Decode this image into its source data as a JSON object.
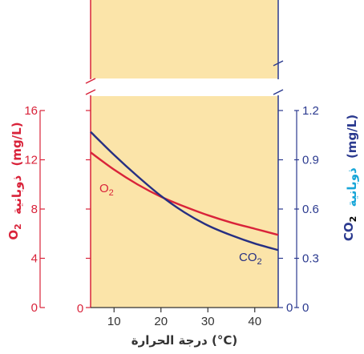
{
  "chart_data": {
    "type": "line",
    "x": [
      5,
      10,
      15,
      20,
      25,
      30,
      35,
      40,
      45
    ],
    "xlim": [
      5,
      45
    ],
    "xticks": [
      10,
      20,
      30,
      40
    ],
    "xlabel": "درجة الحرارة (°C)",
    "x_origin_label": "0",
    "y_left": {
      "label_formula": "O2",
      "label_word": "ذوبانية",
      "label_unit": "(mg/L)",
      "ylim": [
        0,
        16
      ],
      "ticks": [
        "0",
        "4",
        "8",
        "12",
        "16"
      ],
      "color": "#d9233a"
    },
    "y_right": {
      "label_formula": "CO2",
      "label_word": "ذوبانية",
      "label_unit": "(mg/L)",
      "ylim": [
        0,
        1.2
      ],
      "ticks": [
        "0",
        "0.3",
        "0.6",
        "0.9",
        "1.2"
      ],
      "color": "#2b3a8f",
      "word_color": "#18a6d8"
    },
    "series": [
      {
        "name": "O2",
        "axis": "left",
        "color": "#d9233a",
        "values": [
          12.6,
          11.2,
          10.0,
          9.0,
          8.2,
          7.5,
          6.9,
          6.4,
          5.9
        ]
      },
      {
        "name": "CO2",
        "axis": "right",
        "color": "#262f82",
        "values": [
          1.07,
          0.93,
          0.8,
          0.68,
          0.58,
          0.5,
          0.44,
          0.39,
          0.35
        ]
      }
    ],
    "axis_break": true,
    "plot_background": "#fbe4a9",
    "grid": false,
    "legend": "inline labels on curves"
  }
}
